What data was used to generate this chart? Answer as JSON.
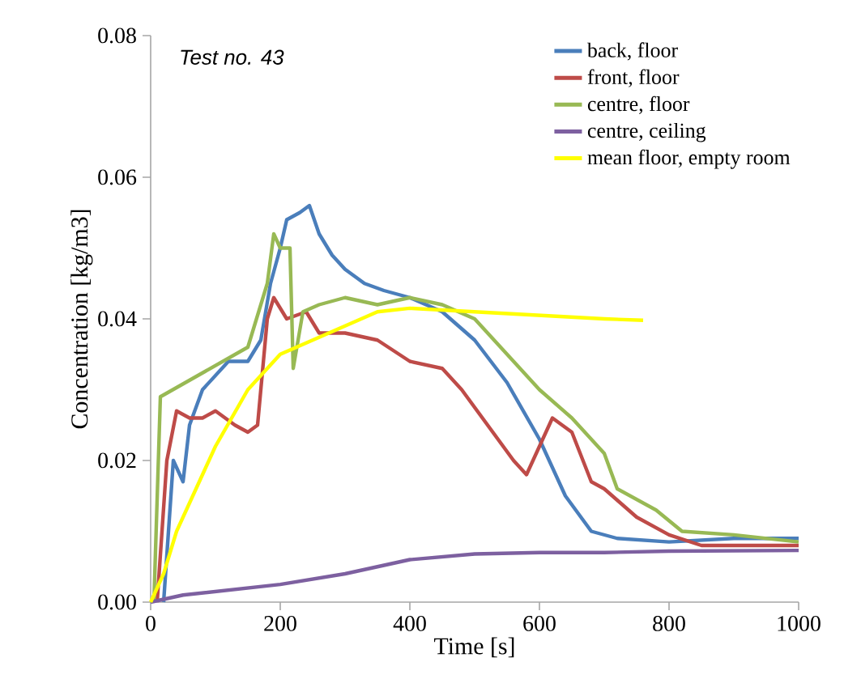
{
  "chart_data": {
    "type": "line",
    "xlabel": "Time [s]",
    "ylabel": "Concentration [kg/m3]",
    "annotations": [
      "*Test no. 43*"
    ],
    "xlim": [
      0,
      1000
    ],
    "ylim": [
      0,
      0.08
    ],
    "xticks": [
      0,
      200,
      400,
      600,
      800,
      1000
    ],
    "yticks": [
      {
        "value": 0,
        "label": "0.00"
      },
      {
        "value": 0.02,
        "label": "0.02"
      },
      {
        "value": 0.04,
        "label": "0.04"
      },
      {
        "value": 0.06,
        "label": "0.06"
      },
      {
        "value": 0.08,
        "label": "0.08"
      }
    ],
    "grid": false,
    "legend": "top right",
    "marker": "none",
    "line_style": "solid",
    "series": [
      {
        "name": "back, floor",
        "color": "#4a7ebb",
        "x": [
          20,
          35,
          50,
          60,
          80,
          100,
          120,
          150,
          170,
          185,
          200,
          210,
          230,
          245,
          260,
          280,
          300,
          330,
          360,
          400,
          450,
          500,
          550,
          600,
          640,
          680,
          720,
          800,
          900,
          1000
        ],
        "values": [
          0,
          0.02,
          0.017,
          0.025,
          0.03,
          0.032,
          0.034,
          0.034,
          0.037,
          0.045,
          0.05,
          0.054,
          0.055,
          0.056,
          0.052,
          0.049,
          0.047,
          0.045,
          0.044,
          0.043,
          0.041,
          0.037,
          0.031,
          0.023,
          0.015,
          0.01,
          0.009,
          0.0085,
          0.009,
          0.009
        ]
      },
      {
        "name": "front, floor",
        "color": "#be4b48",
        "x": [
          10,
          25,
          40,
          60,
          80,
          100,
          130,
          150,
          165,
          180,
          190,
          210,
          240,
          260,
          300,
          350,
          400,
          450,
          480,
          520,
          560,
          580,
          600,
          620,
          650,
          680,
          700,
          750,
          800,
          850,
          900,
          1000
        ],
        "values": [
          0,
          0.02,
          0.027,
          0.026,
          0.026,
          0.027,
          0.025,
          0.024,
          0.025,
          0.04,
          0.043,
          0.04,
          0.041,
          0.038,
          0.038,
          0.037,
          0.034,
          0.033,
          0.03,
          0.025,
          0.02,
          0.018,
          0.022,
          0.026,
          0.024,
          0.017,
          0.016,
          0.012,
          0.0095,
          0.008,
          0.008,
          0.008
        ]
      },
      {
        "name": "centre, floor",
        "color": "#98b954",
        "x": [
          5,
          15,
          150,
          180,
          190,
          200,
          215,
          220,
          235,
          260,
          300,
          350,
          400,
          450,
          500,
          550,
          600,
          650,
          700,
          720,
          780,
          820,
          900,
          1000
        ],
        "values": [
          0,
          0.029,
          0.036,
          0.045,
          0.052,
          0.05,
          0.05,
          0.033,
          0.041,
          0.042,
          0.043,
          0.042,
          0.043,
          0.042,
          0.04,
          0.035,
          0.03,
          0.026,
          0.021,
          0.016,
          0.013,
          0.01,
          0.0095,
          0.0085
        ]
      },
      {
        "name": "centre, ceiling",
        "color": "#7d60a0",
        "x": [
          0,
          50,
          100,
          200,
          300,
          400,
          500,
          600,
          700,
          800,
          1000
        ],
        "values": [
          0,
          0.001,
          0.0015,
          0.0025,
          0.004,
          0.006,
          0.0068,
          0.007,
          0.007,
          0.0072,
          0.0073
        ]
      },
      {
        "name": "mean floor, empty room",
        "color": "#ffff00",
        "x": [
          0,
          20,
          40,
          60,
          100,
          150,
          200,
          250,
          300,
          350,
          400,
          500,
          600,
          700,
          760
        ],
        "values": [
          0,
          0.004,
          0.01,
          0.014,
          0.022,
          0.03,
          0.035,
          0.037,
          0.039,
          0.041,
          0.0415,
          0.041,
          0.0405,
          0.04,
          0.0398
        ]
      }
    ]
  }
}
